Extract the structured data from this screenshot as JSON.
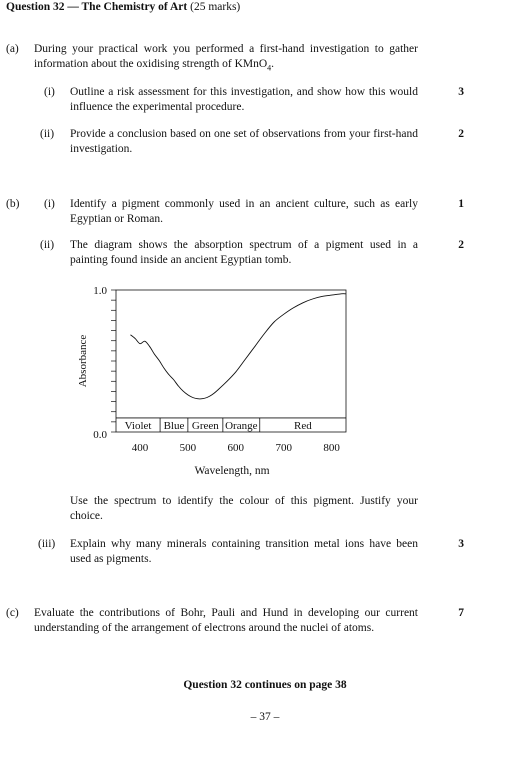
{
  "heading": {
    "title": "Question 32 — The Chemistry of Art",
    "marks": "(25 marks)"
  },
  "part_a": {
    "label": "(a)",
    "stem_pre": "During your practical work you performed a first-hand investigation to gather information about the oxidising strength of KMnO",
    "stem_sub": "4",
    "stem_post": ".",
    "items": [
      {
        "num": "(i)",
        "text": "Outline a risk assessment for this investigation, and show how this would influence the experimental procedure.",
        "marks": "3"
      },
      {
        "num": "(ii)",
        "text": "Provide a conclusion based on one set of observations from your first-hand investigation.",
        "marks": "2"
      }
    ]
  },
  "part_b": {
    "label": "(b)",
    "items": [
      {
        "num": "(i)",
        "text": "Identify a pigment commonly used in an ancient culture, such as early Egyptian or Roman.",
        "marks": "1"
      },
      {
        "num": "(ii)",
        "text": "The diagram shows the absorption spectrum of a pigment used in a painting found inside an ancient Egyptian tomb.",
        "marks": "2"
      },
      {
        "num": "(iii)",
        "text": "Explain why many minerals containing transition metal ions have been used as pigments.",
        "marks": "3"
      }
    ],
    "follow_up": "Use the spectrum to identify the colour of this pigment. Justify your choice."
  },
  "part_c": {
    "label": "(c)",
    "text": "Evaluate the contributions of Bohr, Pauli and Hund in developing our current understanding of the arrangement of electrons around the nuclei of atoms.",
    "marks": "7"
  },
  "footer": {
    "continues": "Question 32 continues on page 38",
    "page_number": "– 37 –"
  },
  "chart_data": {
    "type": "line",
    "title": "",
    "xlabel": "Wavelength, nm",
    "ylabel": "Absorbance",
    "xlim": [
      350,
      830
    ],
    "ylim": [
      -0.11,
      1.0
    ],
    "x_ticks": [
      400,
      500,
      600,
      700,
      800
    ],
    "y_tick_labels": [
      "0.0",
      "1.0"
    ],
    "color_bands": [
      {
        "label": "Violet",
        "from": 350,
        "to": 442
      },
      {
        "label": "Blue",
        "from": 442,
        "to": 500
      },
      {
        "label": "Green",
        "from": 500,
        "to": 573
      },
      {
        "label": "Orange",
        "from": 573,
        "to": 650
      },
      {
        "label": "Red",
        "from": 650,
        "to": 830
      }
    ],
    "series": [
      {
        "x": [
          380,
          390,
          400,
          410,
          420,
          430,
          440,
          450,
          460,
          470,
          480,
          490,
          500,
          510,
          520,
          530,
          540,
          550,
          560,
          580,
          600,
          620,
          640,
          660,
          680,
          700,
          720,
          740,
          760,
          780,
          800,
          820,
          830
        ],
        "y": [
          0.65,
          0.62,
          0.58,
          0.6,
          0.56,
          0.5,
          0.45,
          0.39,
          0.34,
          0.3,
          0.25,
          0.21,
          0.18,
          0.16,
          0.15,
          0.15,
          0.16,
          0.18,
          0.21,
          0.28,
          0.36,
          0.46,
          0.56,
          0.66,
          0.75,
          0.81,
          0.86,
          0.9,
          0.93,
          0.95,
          0.96,
          0.97,
          0.97
        ]
      }
    ]
  }
}
